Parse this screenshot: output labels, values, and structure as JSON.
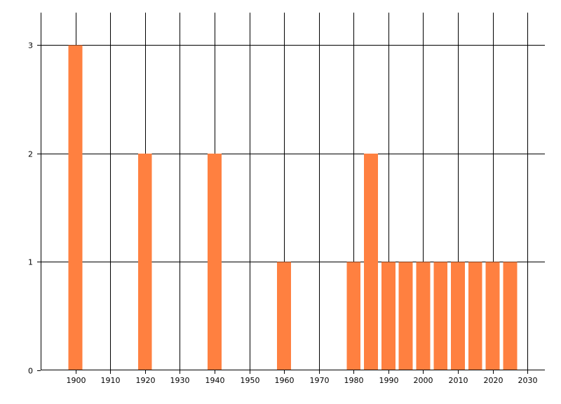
{
  "chart_data": {
    "type": "bar",
    "title": "",
    "xlabel": "",
    "ylabel": "",
    "x": [
      1900,
      1920,
      1940,
      1960,
      1980,
      1985,
      1990,
      1995,
      2000,
      2005,
      2010,
      2015,
      2020,
      2025
    ],
    "values": [
      3,
      2,
      2,
      1,
      1,
      2,
      1,
      1,
      1,
      1,
      1,
      1,
      1,
      1
    ],
    "xlim": [
      1890,
      2035
    ],
    "ylim": [
      0,
      3.3
    ],
    "xticks": [
      1900,
      1910,
      1920,
      1930,
      1940,
      1950,
      1960,
      1970,
      1980,
      1990,
      2000,
      2010,
      2020,
      2030
    ],
    "xtick_labels": [
      "1900",
      "1910",
      "1920",
      "1930",
      "1940",
      "1950",
      "1960",
      "1970",
      "1980",
      "1990",
      "2000",
      "2010",
      "2020",
      "2030"
    ],
    "yticks": [
      0,
      1,
      2,
      3
    ],
    "ytick_labels": [
      "0",
      "1",
      "2",
      "3"
    ],
    "bar_width_years": 4,
    "bar_color": "#FF8040",
    "grid": true
  }
}
